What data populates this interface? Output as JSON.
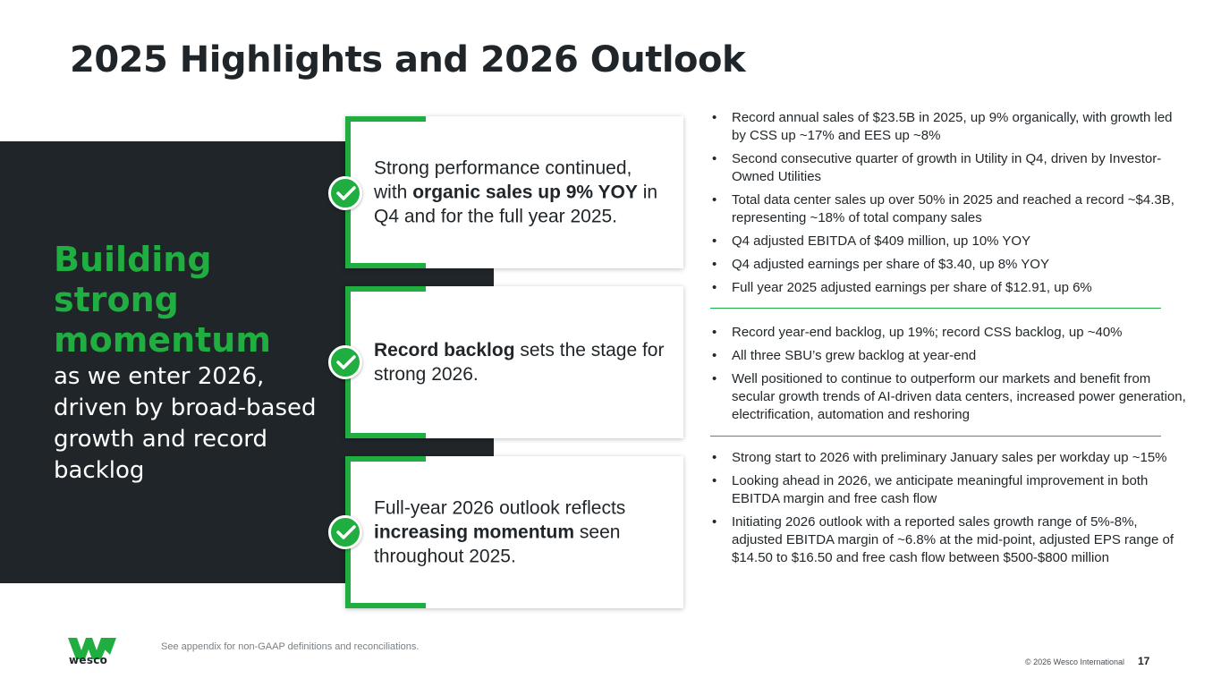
{
  "slide": {
    "title": "2025 Highlights and 2026 Outlook",
    "page_number": "17"
  },
  "colors": {
    "accent_green": "#1fae3f",
    "dark_panel": "#1f2529"
  },
  "headline": {
    "big_line_1": "Building",
    "big_line_2": "strong",
    "big_line_3": "momentum",
    "sub": "as we enter 2026, driven by broad-based growth and record backlog"
  },
  "cards": [
    {
      "pre": "Strong performance continued, with ",
      "bold": "organic sales up 9% YOY",
      "post": " in Q4 and for the full year 2025.",
      "icon": "check-circle-icon"
    },
    {
      "pre": "",
      "bold": "Record backlog",
      "post": " sets the stage for strong 2026.",
      "icon": "check-circle-icon"
    },
    {
      "pre": "Full-year 2026 outlook reflects ",
      "bold": "increasing momentum",
      "post": " seen throughout 2025.",
      "icon": "check-circle-icon"
    }
  ],
  "bullet_groups": [
    [
      "Record annual sales of $23.5B in 2025, up 9% organically, with growth led by CSS up ~17% and EES up ~8%",
      "Second consecutive quarter of growth in Utility in Q4, driven by Investor-Owned Utilities",
      "Total data center sales up over 50% in 2025 and reached a record ~$4.3B, representing ~18% of total company sales",
      "Q4 adjusted EBITDA of $409 million, up 10% YOY",
      "Q4 adjusted earnings per share of $3.40, up 8% YOY",
      "Full year 2025 adjusted earnings per share of $12.91, up 6%"
    ],
    [
      "Record year-end backlog, up 19%; record CSS backlog, up ~40%",
      "All three SBU’s grew backlog at year-end",
      "Well positioned to continue to outperform our markets and benefit from secular growth trends of AI-driven data centers, increased power generation, electrification, automation and reshoring"
    ],
    [
      "Strong start to 2026 with preliminary January sales per workday up ~15%",
      "Looking ahead in 2026, we anticipate meaningful improvement in both EBITDA margin and free cash flow",
      "Initiating 2026 outlook with a reported sales growth range of 5%-8%, adjusted EBITDA margin of ~6.8% at the mid-point, adjusted EPS range of $14.50 to $16.50 and free cash flow between $500-$800 million"
    ]
  ],
  "footer": {
    "logo_text": "wesco",
    "footnote": "See appendix for non-GAAP definitions and reconciliations.",
    "copyright": "© 2026 Wesco International"
  }
}
